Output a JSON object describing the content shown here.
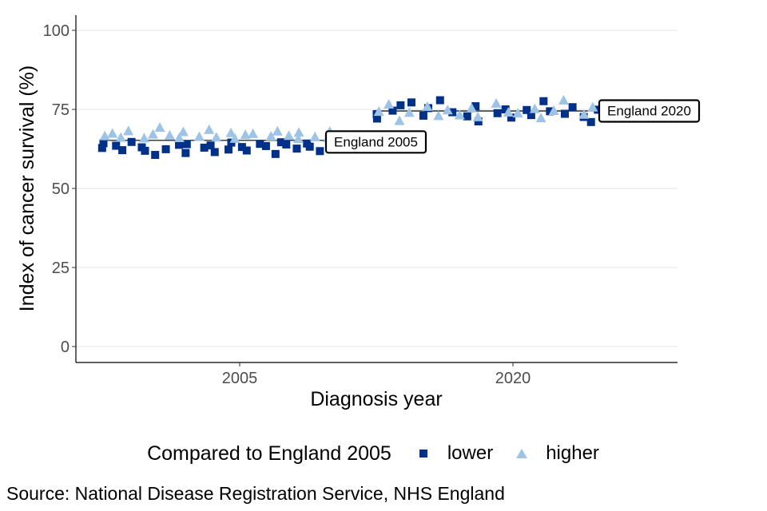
{
  "chart_data": {
    "type": "scatter",
    "xlabel": "Diagnosis year",
    "ylabel": "Index of cancer survival (%)",
    "ylim": [
      0,
      100
    ],
    "yticks": [
      "0",
      "25",
      "50",
      "75",
      "100"
    ],
    "categories": [
      "2005",
      "2020"
    ],
    "grid": "horizontal",
    "legend_position": "bottom",
    "legend_title": "Compared to England 2005",
    "colors": {
      "lower": "#003087",
      "higher": "#9dc3e6"
    },
    "series": [
      {
        "name": "lower",
        "marker": "square",
        "points": [
          {
            "x": "2005",
            "y": 64.3
          },
          {
            "x": "2005",
            "y": 62.8
          },
          {
            "x": "2005",
            "y": 63.5
          },
          {
            "x": "2005",
            "y": 62.1
          },
          {
            "x": "2005",
            "y": 64.7
          },
          {
            "x": "2005",
            "y": 63.0
          },
          {
            "x": "2005",
            "y": 61.9
          },
          {
            "x": "2005",
            "y": 60.6
          },
          {
            "x": "2005",
            "y": 62.4
          },
          {
            "x": "2005",
            "y": 63.8
          },
          {
            "x": "2005",
            "y": 61.2
          },
          {
            "x": "2005",
            "y": 64.0
          },
          {
            "x": "2005",
            "y": 62.9
          },
          {
            "x": "2005",
            "y": 63.6
          },
          {
            "x": "2005",
            "y": 61.5
          },
          {
            "x": "2005",
            "y": 62.3
          },
          {
            "x": "2005",
            "y": 64.5
          },
          {
            "x": "2005",
            "y": 63.1
          },
          {
            "x": "2005",
            "y": 62.0
          },
          {
            "x": "2005",
            "y": 64.1
          },
          {
            "x": "2005",
            "y": 63.4
          },
          {
            "x": "2005",
            "y": 60.9
          },
          {
            "x": "2005",
            "y": 64.6
          },
          {
            "x": "2005",
            "y": 63.9
          },
          {
            "x": "2005",
            "y": 62.6
          },
          {
            "x": "2005",
            "y": 64.2
          },
          {
            "x": "2005",
            "y": 63.2
          },
          {
            "x": "2005",
            "y": 61.8
          },
          {
            "x": "2005",
            "y": 64.8
          },
          {
            "x": "2005",
            "y": 63.3
          },
          {
            "x": "2020",
            "y": 73.5
          },
          {
            "x": "2020",
            "y": 72.1
          },
          {
            "x": "2020",
            "y": 74.6
          },
          {
            "x": "2020",
            "y": 76.3
          },
          {
            "x": "2020",
            "y": 77.2
          },
          {
            "x": "2020",
            "y": 73.0
          },
          {
            "x": "2020",
            "y": 75.4
          },
          {
            "x": "2020",
            "y": 77.9
          },
          {
            "x": "2020",
            "y": 74.1
          },
          {
            "x": "2020",
            "y": 72.8
          },
          {
            "x": "2020",
            "y": 76.0
          },
          {
            "x": "2020",
            "y": 71.2
          },
          {
            "x": "2020",
            "y": 73.8
          },
          {
            "x": "2020",
            "y": 75.0
          },
          {
            "x": "2020",
            "y": 72.4
          },
          {
            "x": "2020",
            "y": 74.8
          },
          {
            "x": "2020",
            "y": 73.2
          },
          {
            "x": "2020",
            "y": 77.6
          },
          {
            "x": "2020",
            "y": 74.4
          },
          {
            "x": "2020",
            "y": 73.6
          },
          {
            "x": "2020",
            "y": 75.7
          },
          {
            "x": "2020",
            "y": 72.6
          },
          {
            "x": "2020",
            "y": 71.0
          },
          {
            "x": "2020",
            "y": 74.9
          },
          {
            "x": "2020",
            "y": 73.4
          }
        ]
      },
      {
        "name": "higher",
        "marker": "triangle",
        "points": [
          {
            "x": "2005",
            "y": 66.5
          },
          {
            "x": "2005",
            "y": 67.3
          },
          {
            "x": "2005",
            "y": 66.0
          },
          {
            "x": "2005",
            "y": 68.1
          },
          {
            "x": "2005",
            "y": 65.8
          },
          {
            "x": "2005",
            "y": 67.0
          },
          {
            "x": "2005",
            "y": 69.2
          },
          {
            "x": "2005",
            "y": 66.7
          },
          {
            "x": "2005",
            "y": 65.9
          },
          {
            "x": "2005",
            "y": 67.8
          },
          {
            "x": "2005",
            "y": 66.3
          },
          {
            "x": "2005",
            "y": 68.5
          },
          {
            "x": "2005",
            "y": 66.1
          },
          {
            "x": "2005",
            "y": 67.5
          },
          {
            "x": "2005",
            "y": 65.7
          },
          {
            "x": "2005",
            "y": 66.9
          },
          {
            "x": "2005",
            "y": 67.2
          },
          {
            "x": "2005",
            "y": 66.4
          },
          {
            "x": "2005",
            "y": 68.0
          },
          {
            "x": "2005",
            "y": 66.6
          },
          {
            "x": "2005",
            "y": 65.6
          },
          {
            "x": "2005",
            "y": 67.6
          },
          {
            "x": "2005",
            "y": 66.2
          },
          {
            "x": "2005",
            "y": 65.9
          },
          {
            "x": "2005",
            "y": 67.9
          },
          {
            "x": "2005",
            "y": 66.8
          },
          {
            "x": "2020",
            "y": 74.2
          },
          {
            "x": "2020",
            "y": 76.5
          },
          {
            "x": "2020",
            "y": 71.3
          },
          {
            "x": "2020",
            "y": 73.9
          },
          {
            "x": "2020",
            "y": 75.8
          },
          {
            "x": "2020",
            "y": 72.9
          },
          {
            "x": "2020",
            "y": 74.7
          },
          {
            "x": "2020",
            "y": 73.1
          },
          {
            "x": "2020",
            "y": 75.3
          },
          {
            "x": "2020",
            "y": 72.5
          },
          {
            "x": "2020",
            "y": 76.8
          },
          {
            "x": "2020",
            "y": 74.0
          },
          {
            "x": "2020",
            "y": 73.7
          },
          {
            "x": "2020",
            "y": 75.1
          },
          {
            "x": "2020",
            "y": 72.2
          },
          {
            "x": "2020",
            "y": 74.5
          },
          {
            "x": "2020",
            "y": 77.8
          },
          {
            "x": "2020",
            "y": 73.3
          },
          {
            "x": "2020",
            "y": 75.6
          },
          {
            "x": "2020",
            "y": 72.7
          },
          {
            "x": "2020",
            "y": 74.3
          }
        ]
      }
    ],
    "reference_lines": [
      {
        "label": "England 2005",
        "category": "2005",
        "y": 65.2
      },
      {
        "label": "England 2020",
        "category": "2020",
        "y": 74.5
      }
    ],
    "source": "Source: National Disease Registration Service, NHS England"
  }
}
